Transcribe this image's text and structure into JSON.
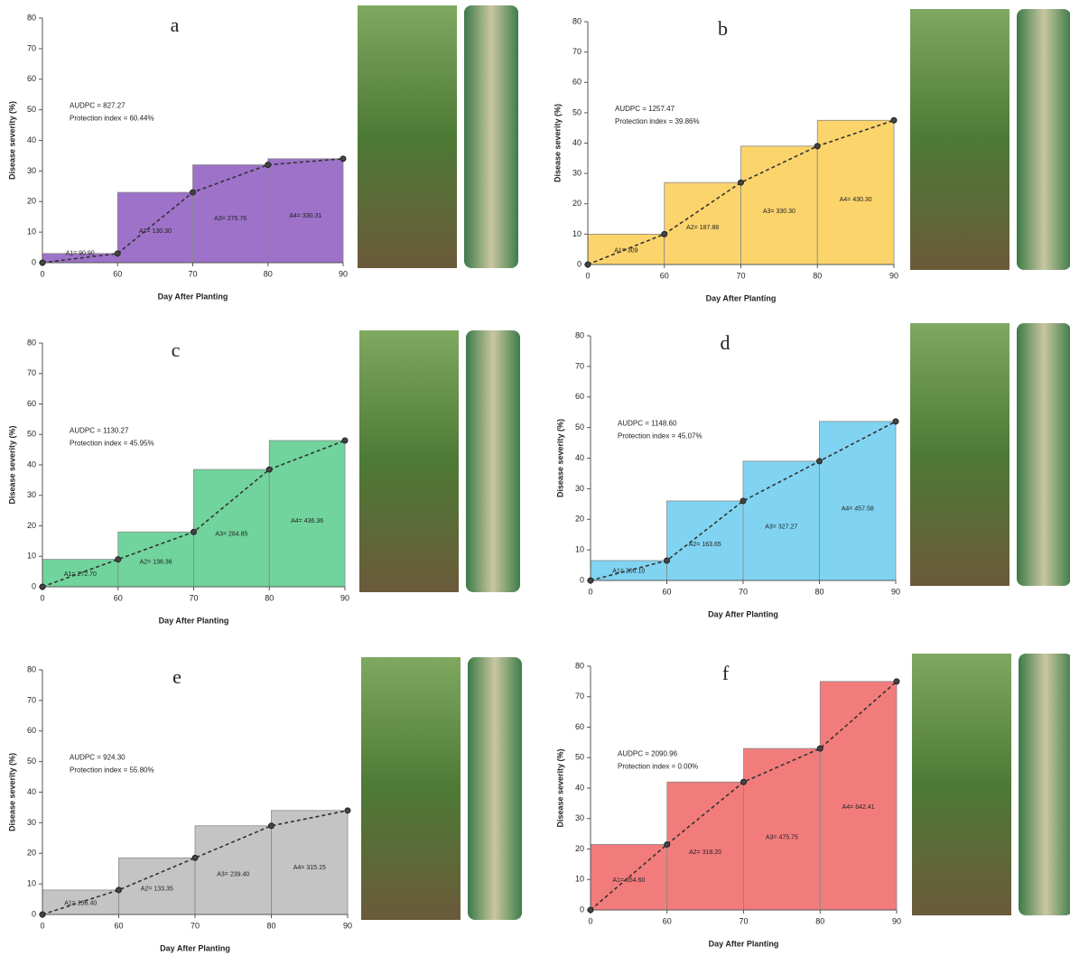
{
  "chart_data": [
    {
      "type": "step",
      "label": "a",
      "annotations": [
        "AUDPC = 827.27",
        "Protection index = 60.44%"
      ],
      "area_labels": [
        "A1= 90.90",
        "A2= 130.30",
        "A3= 275.76",
        "A4= 330.31"
      ],
      "xlabel": "Day After Planting",
      "ylabel": "Disease severity (%)",
      "categories": [
        "0",
        "60",
        "70",
        "80",
        "90"
      ],
      "values": [
        0,
        3,
        23,
        32,
        34
      ],
      "color": "#9d72c8",
      "ylim": [
        0,
        80
      ],
      "yticks": [
        0,
        10,
        20,
        30,
        40,
        50,
        60,
        70,
        80
      ]
    },
    {
      "type": "step",
      "label": "b",
      "annotations": [
        "AUDPC = 1257.47",
        "Protection index = 39.86%"
      ],
      "area_labels": [
        "A1= 309",
        "A2= 187.88",
        "A3= 330.30",
        "A4= 430.30"
      ],
      "xlabel": "Day After Planting",
      "ylabel": "Disease severity (%)",
      "categories": [
        "0",
        "60",
        "70",
        "80",
        "90"
      ],
      "values": [
        0,
        10,
        27,
        39,
        47.5
      ],
      "color": "#fcd46c",
      "ylim": [
        0,
        80
      ],
      "yticks": [
        0,
        10,
        20,
        30,
        40,
        50,
        60,
        70,
        80
      ]
    },
    {
      "type": "step",
      "label": "c",
      "annotations": [
        "AUDPC = 1130.27",
        "Protection index = 45.95%"
      ],
      "area_labels": [
        "A1= 272.70",
        "A2= 136.36",
        "A3= 284.85",
        "A4= 436.36"
      ],
      "xlabel": "Day After Planting",
      "ylabel": "Disease severity (%)",
      "categories": [
        "0",
        "60",
        "70",
        "80",
        "90"
      ],
      "values": [
        0,
        9,
        18,
        38.5,
        48
      ],
      "color": "#70d49c",
      "ylim": [
        0,
        80
      ],
      "yticks": [
        0,
        10,
        20,
        30,
        40,
        50,
        60,
        70,
        80
      ]
    },
    {
      "type": "step",
      "label": "d",
      "annotations": [
        "AUDPC = 1148.60",
        "Protection index = 45.07%"
      ],
      "area_labels": [
        "A1= 200.10",
        "A2= 163.65",
        "A3= 327.27",
        "A4= 457.58"
      ],
      "xlabel": "Day After Planting",
      "ylabel": "Disease severity (%)",
      "categories": [
        "0",
        "60",
        "70",
        "80",
        "90"
      ],
      "values": [
        0,
        6.5,
        26,
        39,
        52
      ],
      "color": "#80d4f2",
      "ylim": [
        0,
        80
      ],
      "yticks": [
        0,
        10,
        20,
        30,
        40,
        50,
        60,
        70,
        80
      ]
    },
    {
      "type": "step",
      "label": "e",
      "annotations": [
        "AUDPC = 924.30",
        "Protection index = 55.80%"
      ],
      "area_labels": [
        "A1= 236.40",
        "A2= 133.35",
        "A3= 239.40",
        "A4= 315.15"
      ],
      "xlabel": "Day After Planting",
      "ylabel": "Disease severity (%)",
      "categories": [
        "0",
        "60",
        "70",
        "80",
        "90"
      ],
      "values": [
        0,
        8,
        18.5,
        29,
        34
      ],
      "color": "#c4c4c4",
      "ylim": [
        0,
        80
      ],
      "yticks": [
        0,
        10,
        20,
        30,
        40,
        50,
        60,
        70,
        80
      ]
    },
    {
      "type": "step",
      "label": "f",
      "annotations": [
        "AUDPC = 2090.96",
        "Protection index = 0.00%"
      ],
      "area_labels": [
        "A1= 654.60",
        "A2= 318.20",
        "A3= 475.75",
        "A4= 642.41"
      ],
      "xlabel": "Day After Planting",
      "ylabel": "Disease severity (%)",
      "categories": [
        "0",
        "60",
        "70",
        "80",
        "90"
      ],
      "values": [
        0,
        21.5,
        42,
        53,
        75
      ],
      "color": "#f27c7c",
      "ylim": [
        0,
        80
      ],
      "yticks": [
        0,
        10,
        20,
        30,
        40,
        50,
        60,
        70,
        80
      ]
    }
  ]
}
